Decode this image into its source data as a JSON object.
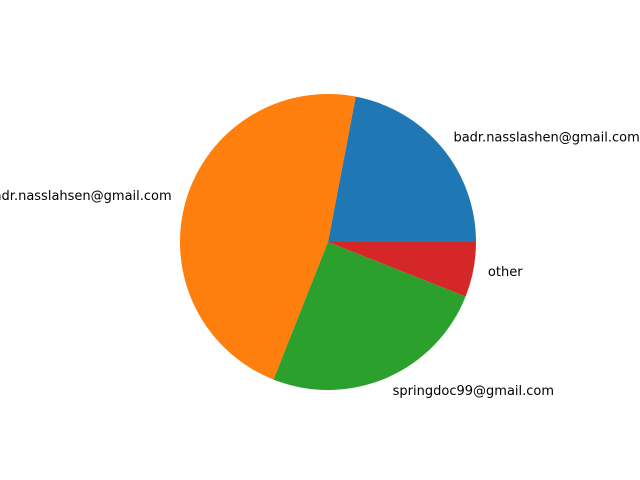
{
  "chart_data": {
    "type": "pie",
    "title": "",
    "labels": [
      "badr.nasslashen@gmail.com",
      "badr.nasslahsen@gmail.com",
      "springdoc99@gmail.com",
      "other"
    ],
    "values": [
      22,
      47,
      25,
      6
    ],
    "colors": [
      "#1f77b4",
      "#ff7f0e",
      "#2ca02c",
      "#d62728"
    ],
    "legend": false
  }
}
